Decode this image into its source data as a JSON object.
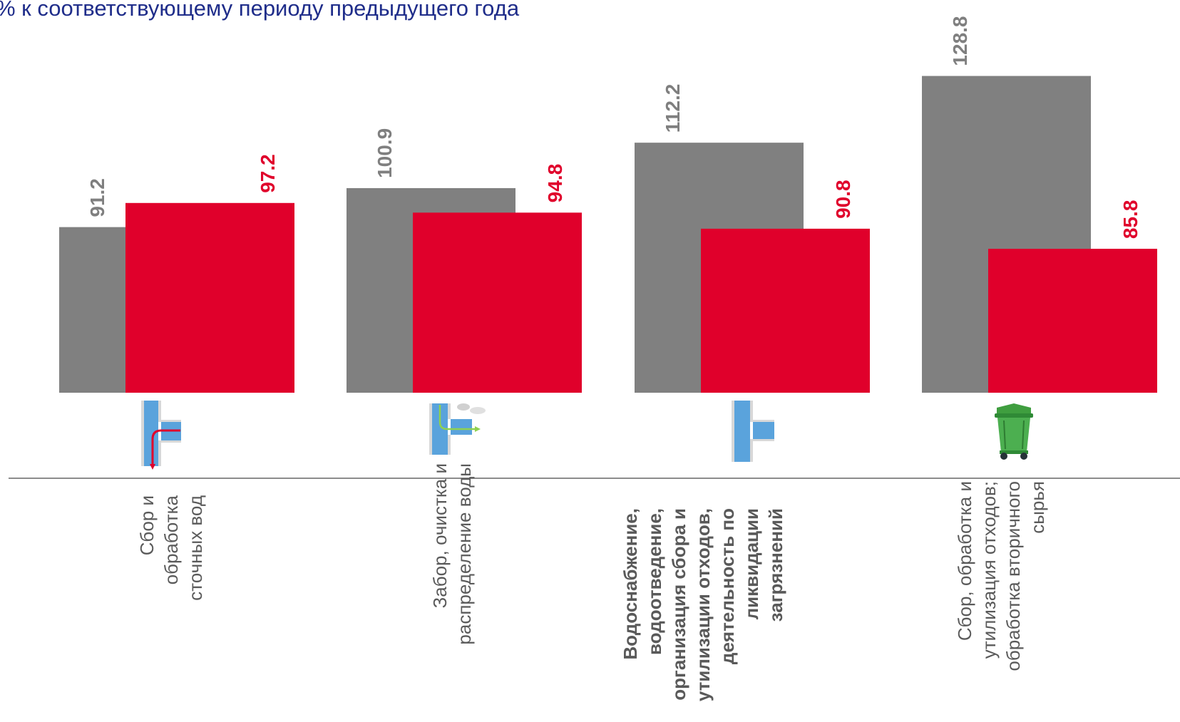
{
  "chart_data": {
    "type": "bar",
    "title": "% к соответствующему периоду предыдущего года",
    "categories": [
      "Сбор и обработка сточных вод",
      "Забор, очистка и распределение воды",
      "Водоснабжение, водоотведение, организация сбора и утилизации отходов, деятельность по ликвидации загрязнений",
      "Сбор, обработка и утилизация отходов; обработка вторичного сырья"
    ],
    "series": [
      {
        "values": [
          91.2,
          100.9,
          112.2,
          128.8
        ]
      },
      {
        "values": [
          97.2,
          94.8,
          90.8,
          85.8
        ]
      }
    ],
    "highlighted_category": "Водоснабжение, водоотведение, организация сбора и утилизации отходов, деятельность по ликвидации загрязнений",
    "colors": {
      "previous": "#808080",
      "current": "#e0002b",
      "title": "#1f2d8a",
      "axis": "#8c8c8c"
    },
    "icons": [
      "pipe-drain-icon",
      "pipe-intake-icon",
      "pipe-tee-icon",
      "waste-container-icon"
    ],
    "grid": false,
    "legend": "none"
  }
}
